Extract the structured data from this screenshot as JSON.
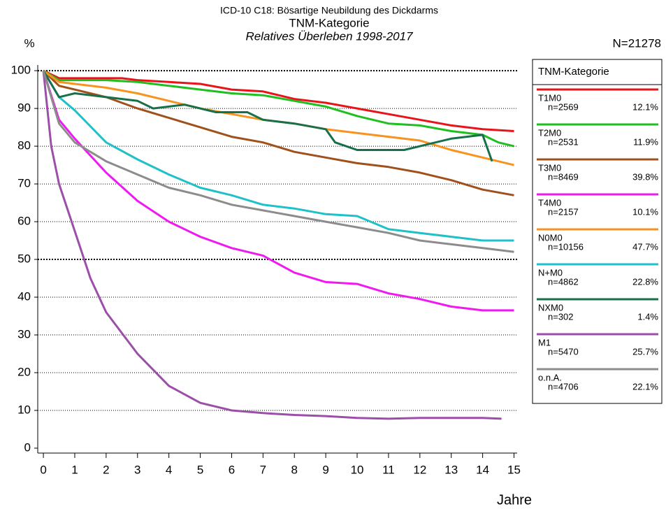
{
  "chart_data": {
    "type": "line",
    "title": "ICD-10 C18: Bösartige Neubildung des Dickdarms",
    "subtitle": "TNM-Kategorie",
    "subtitle2": "Relatives Überleben 1998-2017",
    "y_label": "%",
    "x_label": "Jahre",
    "total": "N=21278",
    "legend_title": "TNM-Kategorie",
    "xlim": [
      -0.18,
      15.1
    ],
    "xticks": [
      0,
      1,
      2,
      3,
      4,
      5,
      6,
      7,
      8,
      9,
      10,
      11,
      12,
      13,
      14,
      15
    ],
    "ylim": [
      -1.3,
      101.5
    ],
    "yticks": [
      0,
      10,
      20,
      30,
      40,
      50,
      60,
      70,
      80,
      90,
      100
    ],
    "grid": true,
    "series": [
      {
        "name": "T1M0",
        "n": "n=2569",
        "share": "12.1%",
        "color": "#e8141a",
        "x": [
          0,
          0.5,
          1,
          2,
          2.5,
          3,
          4,
          5,
          6,
          7,
          8,
          9,
          10,
          11,
          12,
          13,
          14,
          15
        ],
        "values": [
          100,
          98,
          98,
          98,
          98,
          97.5,
          97,
          96.5,
          95,
          94.5,
          92.5,
          91.5,
          90,
          88.5,
          87,
          85.5,
          84.5,
          84
        ]
      },
      {
        "name": "T2M0",
        "n": "n=2531",
        "share": "11.9%",
        "color": "#1fbf1f",
        "x": [
          0,
          0.5,
          1,
          2,
          3,
          4,
          5,
          6,
          7,
          8,
          9,
          10,
          11,
          12,
          13,
          14,
          14.5,
          15
        ],
        "values": [
          100,
          97.5,
          97.5,
          97.5,
          97,
          96,
          95,
          94,
          93.5,
          92,
          90.5,
          88,
          86,
          85.5,
          84,
          83,
          81,
          80
        ]
      },
      {
        "name": "T3M0",
        "n": "n=8469",
        "share": "39.8%",
        "color": "#a0501a",
        "x": [
          0,
          0.5,
          1,
          2,
          3,
          4,
          5,
          6,
          7,
          8,
          9,
          10,
          11,
          12,
          13,
          14,
          15
        ],
        "values": [
          100,
          96,
          95,
          93,
          90,
          87.5,
          85,
          82.5,
          81,
          78.5,
          77,
          75.5,
          74.5,
          73,
          71,
          68.5,
          67
        ]
      },
      {
        "name": "T4M0",
        "n": "n=2157",
        "share": "10.1%",
        "color": "#f019f0",
        "x": [
          0,
          0.5,
          1,
          2,
          3,
          4,
          5,
          6,
          7,
          8,
          9,
          10,
          11,
          12,
          13,
          14,
          15
        ],
        "values": [
          100,
          87,
          82,
          73,
          65.5,
          60,
          56,
          53,
          51,
          46.5,
          44,
          43.5,
          41,
          39.5,
          37.5,
          36.5,
          36.5
        ]
      },
      {
        "name": "N0M0",
        "n": "n=10156",
        "share": "47.7%",
        "color": "#f7931e",
        "x": [
          0,
          0.5,
          1,
          2,
          3,
          4,
          5,
          6,
          7,
          8,
          9,
          10,
          11,
          12,
          13,
          14,
          15
        ],
        "values": [
          100,
          97,
          96.5,
          95.5,
          94,
          92,
          90,
          88.5,
          87,
          86,
          84.5,
          83.5,
          82.5,
          81.5,
          79,
          77,
          75
        ]
      },
      {
        "name": "N+M0",
        "n": "n=4862",
        "share": "22.8%",
        "color": "#1fc1c8",
        "x": [
          0,
          0.5,
          1,
          2,
          3,
          4,
          5,
          6,
          7,
          8,
          9,
          10,
          11,
          12,
          13,
          14,
          15
        ],
        "values": [
          100,
          93,
          89.5,
          81,
          76.5,
          72.5,
          69,
          67,
          64.5,
          63.5,
          62,
          61.5,
          58,
          57,
          56,
          55,
          55
        ]
      },
      {
        "name": "NXM0",
        "n": "n=302",
        "share": "1.4%",
        "color": "#17704a",
        "x": [
          0,
          0.5,
          1,
          2,
          3,
          3.5,
          4.5,
          5.5,
          6.5,
          7,
          8,
          9,
          9.3,
          10,
          11.5,
          13,
          14,
          14.3
        ],
        "values": [
          100,
          93,
          94,
          93,
          92,
          90,
          91,
          89,
          89,
          87,
          86,
          84.5,
          81,
          79,
          79,
          82,
          83,
          76
        ]
      },
      {
        "name": "M1",
        "n": "n=5470",
        "share": "25.7%",
        "color": "#9b4fa8",
        "x": [
          0,
          0.25,
          0.5,
          1,
          1.5,
          2,
          3,
          4,
          5,
          6,
          7,
          8,
          9,
          10,
          11,
          12,
          13,
          14,
          14.6
        ],
        "values": [
          100,
          80,
          70,
          57.5,
          45,
          36,
          25,
          16.5,
          12,
          10,
          9.3,
          8.8,
          8.5,
          8,
          7.8,
          8,
          8,
          8,
          7.8
        ]
      },
      {
        "name": "o.n.A.",
        "n": "n=4706",
        "share": "22.1%",
        "color": "#8c8c8c",
        "x": [
          0,
          0.5,
          1,
          2,
          3,
          4,
          5,
          6,
          7,
          8,
          9,
          10,
          11,
          12,
          13,
          14,
          15
        ],
        "values": [
          100,
          86,
          81,
          76,
          72.5,
          69,
          67,
          64.5,
          63,
          61.5,
          60,
          58.5,
          57,
          55,
          54,
          53,
          52
        ]
      }
    ]
  }
}
